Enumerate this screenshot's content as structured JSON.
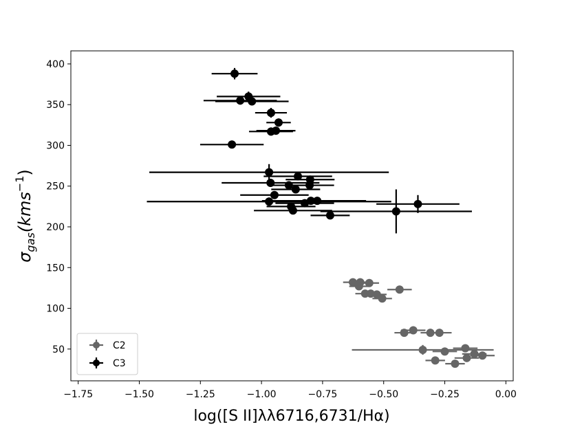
{
  "chart_data": {
    "type": "scatter",
    "xlabel": "log([S II]λλ6716,6731/Hα)",
    "ylabel": [
      "σ",
      "gas",
      "(kms",
      "−1",
      ")"
    ],
    "xlim": [
      -1.78,
      0.03
    ],
    "ylim": [
      11,
      416
    ],
    "xticks": [
      {
        "value": -1.75,
        "label": "−1.75"
      },
      {
        "value": -1.5,
        "label": "−1.50"
      },
      {
        "value": -1.25,
        "label": "−1.25"
      },
      {
        "value": -1.0,
        "label": "−1.00"
      },
      {
        "value": -0.75,
        "label": "−0.75"
      },
      {
        "value": -0.5,
        "label": "−0.50"
      },
      {
        "value": -0.25,
        "label": "−0.25"
      },
      {
        "value": 0,
        "label": "0.00"
      }
    ],
    "yticks": [
      50,
      100,
      150,
      200,
      250,
      300,
      350,
      400
    ],
    "legend": "lower left",
    "series": [
      {
        "name": "C2",
        "color": "#666666",
        "x": [
          -0.626,
          -0.596,
          -0.559,
          -0.601,
          -0.435,
          -0.576,
          -0.553,
          -0.528,
          -0.506,
          -0.379,
          -0.416,
          -0.309,
          -0.272,
          -0.34,
          -0.25,
          -0.166,
          -0.129,
          -0.16,
          -0.096,
          -0.289,
          -0.208
        ],
        "y": [
          132,
          132,
          131,
          127,
          123,
          118,
          118,
          117,
          112,
          73,
          70,
          70,
          70,
          49,
          47,
          51,
          44,
          39,
          42,
          36,
          32
        ],
        "xerr": [
          0.04,
          0.04,
          0.04,
          0.04,
          0.05,
          0.04,
          0.04,
          0.04,
          0.04,
          0.05,
          0.04,
          0.04,
          0.05,
          0.29,
          0.05,
          0.05,
          0.05,
          0.05,
          0.05,
          0.04,
          0.04
        ],
        "yerr": [
          3,
          3,
          3,
          3,
          3,
          3,
          3,
          3,
          3,
          3,
          3,
          3,
          3,
          6,
          3,
          3,
          3,
          3,
          3,
          3,
          3
        ]
      },
      {
        "name": "C3",
        "color": "#000000",
        "x": [
          -1.11,
          -1.053,
          -1.087,
          -1.039,
          -0.961,
          -0.93,
          -0.961,
          -0.941,
          -1.121,
          -0.969,
          -0.851,
          -0.963,
          -0.801,
          -0.803,
          -0.888,
          -0.86,
          -0.947,
          -0.969,
          -0.798,
          -0.772,
          -0.823,
          -0.879,
          -0.871,
          -0.719,
          -0.449,
          -0.36
        ],
        "y": [
          388,
          360,
          355,
          354,
          340,
          328,
          317,
          318,
          301,
          267,
          262,
          254,
          258,
          251,
          251,
          246,
          239,
          231,
          232,
          232,
          229,
          225,
          220,
          214,
          219,
          228
        ],
        "xerr": [
          0.094,
          0.13,
          0.15,
          0.15,
          0.065,
          0.05,
          0.09,
          0.08,
          0.13,
          0.49,
          0.14,
          0.2,
          0.1,
          0.1,
          0.08,
          0.1,
          0.14,
          0.5,
          0.2,
          0.2,
          0.12,
          0.1,
          0.16,
          0.08,
          0.31,
          0.17
        ],
        "yerr": [
          7,
          6,
          5,
          5,
          6,
          5,
          5,
          5,
          3,
          10,
          4,
          5,
          4,
          4,
          4,
          4,
          4,
          5,
          4,
          4,
          4,
          4,
          4,
          4,
          27,
          11
        ]
      }
    ]
  }
}
